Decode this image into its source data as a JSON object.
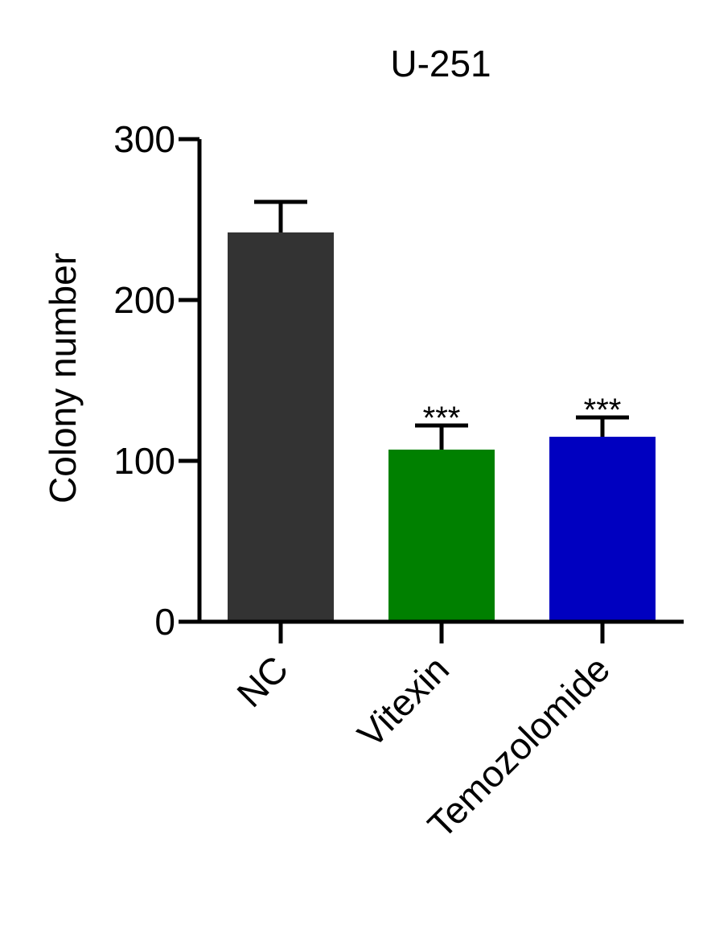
{
  "chart_data": {
    "type": "bar",
    "title": "U-251",
    "xlabel": "",
    "ylabel": "Colony number",
    "ylim": [
      0,
      300
    ],
    "yticks": [
      0,
      100,
      200,
      300
    ],
    "categories": [
      "NC",
      "Vitexin",
      "Temozolomide"
    ],
    "values": [
      242,
      107,
      115
    ],
    "errors": [
      19,
      15,
      12
    ],
    "significance": [
      "",
      "***",
      "***"
    ],
    "colors": [
      "#333333",
      "#008000",
      "#0000c0"
    ],
    "grid": false,
    "legend": "none"
  }
}
